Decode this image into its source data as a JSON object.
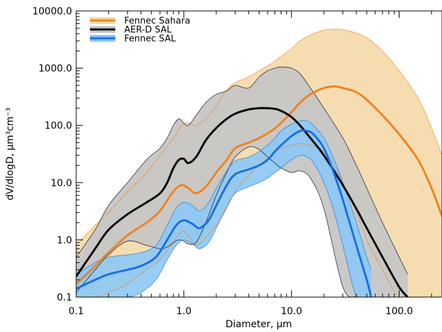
{
  "chart_data": {
    "type": "line",
    "title": "",
    "xlabel": "Diameter, μm",
    "ylabel": "dV/dlogD, μm³cm⁻³",
    "xscale": "log",
    "yscale": "log",
    "xlim": [
      0.1,
      250
    ],
    "ylim": [
      0.1,
      10000
    ],
    "x_ticks": [
      {
        "value": 0.1,
        "label": "0.1"
      },
      {
        "value": 1,
        "label": "1.0"
      },
      {
        "value": 10,
        "label": "10.0"
      },
      {
        "value": 100,
        "label": "100.0"
      }
    ],
    "y_ticks": [
      {
        "value": 0.1,
        "label": "0.1"
      },
      {
        "value": 1,
        "label": "1.0"
      },
      {
        "value": 10,
        "label": "10.0"
      },
      {
        "value": 100,
        "label": "100.0"
      },
      {
        "value": 1000,
        "label": "1000.0"
      },
      {
        "value": 10000,
        "label": "10000.0"
      }
    ],
    "grid": false,
    "legend_position": "top-left",
    "series": [
      {
        "name": "Fennec Sahara",
        "color": "#f0821e",
        "fill_color": "#f5d9a8",
        "x": [
          0.1,
          0.15,
          0.2,
          0.3,
          0.45,
          0.6,
          0.8,
          0.95,
          1.1,
          1.3,
          1.6,
          2.0,
          2.5,
          3.0,
          4.0,
          5.0,
          6.5,
          8.0,
          10,
          12,
          15,
          20,
          25,
          30,
          40,
          50,
          70,
          100,
          150,
          200,
          250
        ],
        "y": [
          0.17,
          0.35,
          0.6,
          1.2,
          2.0,
          3.2,
          7.0,
          9.0,
          8.0,
          6.5,
          8.5,
          15,
          25,
          40,
          50,
          60,
          80,
          110,
          170,
          250,
          350,
          450,
          480,
          450,
          380,
          280,
          150,
          70,
          25,
          8,
          2.6
        ],
        "lower": [
          0.1,
          0.1,
          0.12,
          0.17,
          0.3,
          0.45,
          0.9,
          1.4,
          1.2,
          0.8,
          1.1,
          1.8,
          3.5,
          7.0,
          13,
          20,
          30,
          40,
          45,
          48,
          45,
          35,
          20,
          10,
          3,
          1,
          0.3,
          0.1,
          0.1,
          0.1,
          0.1
        ],
        "upper": [
          0.8,
          1.8,
          3.0,
          7.0,
          15,
          30,
          60,
          100,
          110,
          100,
          130,
          220,
          420,
          560,
          700,
          900,
          1200,
          1600,
          2200,
          3000,
          3800,
          4600,
          4800,
          4700,
          4100,
          3400,
          2000,
          900,
          300,
          90,
          30
        ]
      },
      {
        "name": "AER-D SAL",
        "color": "#000000",
        "fill_color": "#c6c6c6",
        "x": [
          0.1,
          0.15,
          0.2,
          0.3,
          0.45,
          0.6,
          0.7,
          0.8,
          0.9,
          1.0,
          1.1,
          1.3,
          1.6,
          2.0,
          2.5,
          3.0,
          4.0,
          5.0,
          6.0,
          7.0,
          8.0,
          10,
          12,
          15,
          20,
          30,
          40,
          50,
          70,
          100,
          120
        ],
        "y": [
          0.23,
          0.7,
          1.5,
          2.8,
          4.5,
          6.5,
          10,
          18,
          25,
          26,
          22,
          28,
          55,
          90,
          130,
          160,
          190,
          200,
          200,
          195,
          180,
          140,
          100,
          60,
          30,
          9,
          3.5,
          1.6,
          0.5,
          0.15,
          0.1
        ],
        "lower": [
          0.12,
          0.3,
          0.55,
          0.95,
          0.8,
          0.7,
          0.75,
          0.9,
          1.0,
          0.95,
          0.85,
          0.9,
          2.0,
          6.0,
          15,
          28,
          42,
          38,
          28,
          22,
          18,
          15,
          16,
          12,
          3.5,
          0.15,
          0.1,
          0.1,
          0.1,
          0.1,
          0.1
        ],
        "upper": [
          0.5,
          1.5,
          4.0,
          10,
          25,
          40,
          60,
          100,
          130,
          110,
          100,
          150,
          250,
          350,
          400,
          500,
          450,
          700,
          900,
          1000,
          1050,
          1000,
          800,
          450,
          200,
          60,
          20,
          8,
          2,
          0.5,
          0.25
        ]
      },
      {
        "name": "Fennec SAL",
        "color": "#1a6fe0",
        "fill_color": "#8cc8f5",
        "x": [
          0.1,
          0.15,
          0.2,
          0.3,
          0.4,
          0.55,
          0.7,
          0.85,
          1.0,
          1.2,
          1.4,
          1.7,
          2.0,
          2.5,
          3.0,
          4.0,
          5.0,
          6.0,
          7.0,
          8.0,
          10,
          12,
          14,
          16,
          20,
          25,
          30,
          40,
          50,
          55
        ],
        "y": [
          0.14,
          0.2,
          0.25,
          0.3,
          0.35,
          0.5,
          1.0,
          1.8,
          2.2,
          1.9,
          1.6,
          2.2,
          4.0,
          9.0,
          14,
          17,
          20,
          25,
          35,
          45,
          65,
          80,
          80,
          70,
          40,
          14,
          5,
          0.8,
          0.2,
          0.1
        ],
        "lower": [
          0.1,
          0.1,
          0.1,
          0.1,
          0.12,
          0.2,
          0.45,
          0.8,
          1.0,
          0.85,
          0.7,
          0.9,
          1.6,
          3.8,
          6.5,
          8.5,
          10,
          12,
          15,
          18,
          25,
          30,
          28,
          22,
          10,
          3,
          0.8,
          0.1,
          0.1,
          0.1
        ],
        "upper": [
          0.25,
          0.4,
          0.5,
          0.55,
          0.6,
          0.8,
          1.8,
          3.6,
          4.5,
          4.0,
          3.2,
          4.5,
          8.0,
          16,
          24,
          28,
          35,
          45,
          60,
          80,
          105,
          120,
          120,
          100,
          60,
          25,
          10,
          2,
          0.5,
          0.3
        ]
      }
    ]
  }
}
